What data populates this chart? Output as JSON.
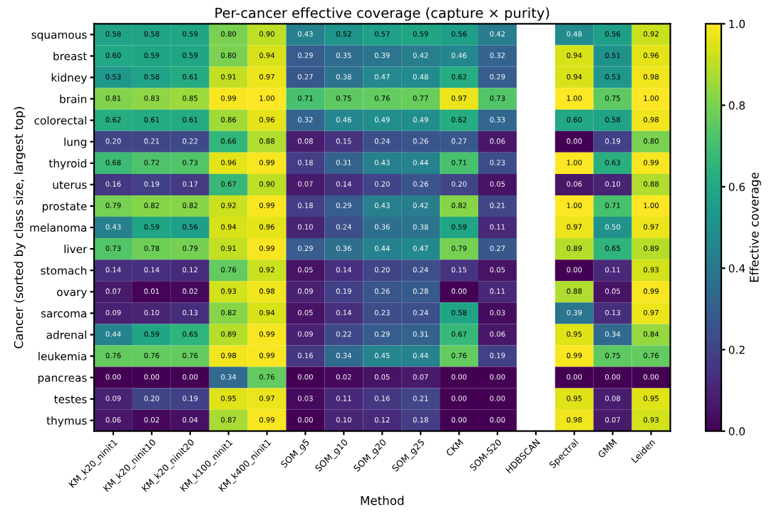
{
  "chart_data": {
    "type": "heatmap",
    "title": "Per-cancer effective coverage (capture × purity)",
    "xlabel": "Method",
    "ylabel": "Cancer (sorted by class size, largest top)",
    "clabel": "Effective coverage",
    "categories": [
      "KM_k20_ninit1",
      "KM_k20_ninit10",
      "KM_k20_ninit20",
      "KM_k100_ninit1",
      "KM_k400_ninit1",
      "SOM_g5",
      "SOM_g10",
      "SOM_g20",
      "SOM_g25",
      "CKM",
      "SOM-S20",
      "HDBSCAN",
      "Spectral",
      "GMM",
      "Leiden"
    ],
    "y_categories": [
      "squamous",
      "breast",
      "kidney",
      "brain",
      "colorectal",
      "lung",
      "thyroid",
      "uterus",
      "prostate",
      "melanoma",
      "liver",
      "stomach",
      "ovary",
      "sarcoma",
      "adrenal",
      "leukemia",
      "pancreas",
      "testes",
      "thymus"
    ],
    "cells": [
      [
        0.58,
        0.58,
        0.59,
        0.8,
        0.9,
        0.43,
        0.52,
        0.57,
        0.59,
        0.56,
        0.42,
        null,
        0.48,
        0.56,
        0.92
      ],
      [
        0.6,
        0.59,
        0.59,
        0.8,
        0.94,
        0.29,
        0.35,
        0.39,
        0.42,
        0.46,
        0.32,
        null,
        0.94,
        0.51,
        0.96
      ],
      [
        0.53,
        0.58,
        0.61,
        0.91,
        0.97,
        0.27,
        0.38,
        0.47,
        0.48,
        0.62,
        0.29,
        null,
        0.94,
        0.53,
        0.98
      ],
      [
        0.81,
        0.83,
        0.85,
        0.99,
        1.0,
        0.71,
        0.75,
        0.76,
        0.77,
        0.97,
        0.73,
        null,
        1.0,
        0.75,
        1.0
      ],
      [
        0.62,
        0.61,
        0.61,
        0.86,
        0.96,
        0.32,
        0.46,
        0.49,
        0.49,
        0.62,
        0.33,
        null,
        0.6,
        0.58,
        0.98
      ],
      [
        0.2,
        0.21,
        0.22,
        0.66,
        0.88,
        0.08,
        0.15,
        0.24,
        0.26,
        0.27,
        0.06,
        null,
        0.0,
        0.19,
        0.8
      ],
      [
        0.68,
        0.72,
        0.73,
        0.96,
        0.99,
        0.18,
        0.31,
        0.43,
        0.44,
        0.71,
        0.23,
        null,
        1.0,
        0.63,
        0.99
      ],
      [
        0.16,
        0.19,
        0.17,
        0.67,
        0.9,
        0.07,
        0.14,
        0.2,
        0.26,
        0.2,
        0.05,
        null,
        0.06,
        0.1,
        0.88
      ],
      [
        0.79,
        0.82,
        0.82,
        0.92,
        0.99,
        0.18,
        0.29,
        0.43,
        0.42,
        0.82,
        0.21,
        null,
        1.0,
        0.71,
        1.0
      ],
      [
        0.43,
        0.59,
        0.56,
        0.94,
        0.96,
        0.1,
        0.24,
        0.36,
        0.38,
        0.59,
        0.11,
        null,
        0.97,
        0.5,
        0.97
      ],
      [
        0.73,
        0.78,
        0.79,
        0.91,
        0.99,
        0.29,
        0.36,
        0.44,
        0.47,
        0.79,
        0.27,
        null,
        0.89,
        0.65,
        0.89
      ],
      [
        0.14,
        0.14,
        0.12,
        0.76,
        0.92,
        0.05,
        0.14,
        0.2,
        0.24,
        0.15,
        0.05,
        null,
        0.0,
        0.11,
        0.93
      ],
      [
        0.07,
        0.01,
        0.02,
        0.93,
        0.98,
        0.09,
        0.19,
        0.26,
        0.28,
        0.0,
        0.11,
        null,
        0.88,
        0.05,
        0.99
      ],
      [
        0.09,
        0.1,
        0.13,
        0.82,
        0.94,
        0.05,
        0.14,
        0.23,
        0.24,
        0.58,
        0.03,
        null,
        0.39,
        0.13,
        0.97
      ],
      [
        0.44,
        0.59,
        0.65,
        0.89,
        0.99,
        0.09,
        0.22,
        0.29,
        0.31,
        0.67,
        0.06,
        null,
        0.95,
        0.34,
        0.84
      ],
      [
        0.76,
        0.76,
        0.76,
        0.98,
        0.99,
        0.16,
        0.34,
        0.45,
        0.44,
        0.76,
        0.19,
        null,
        0.99,
        0.75,
        0.76
      ],
      [
        0.0,
        0.0,
        0.0,
        0.34,
        0.76,
        0.0,
        0.02,
        0.05,
        0.07,
        0.0,
        0.0,
        null,
        0.0,
        0.0,
        0.0
      ],
      [
        0.09,
        0.2,
        0.19,
        0.95,
        0.97,
        0.03,
        0.11,
        0.16,
        0.21,
        0.0,
        0.0,
        null,
        0.95,
        0.08,
        0.95
      ],
      [
        0.06,
        0.02,
        0.04,
        0.87,
        0.99,
        0.0,
        0.1,
        0.12,
        0.18,
        0.0,
        0.0,
        null,
        0.98,
        0.07,
        0.93
      ]
    ],
    "clim": [
      0,
      1
    ],
    "cticks": [
      {
        "value": 0,
        "label": "0.0"
      },
      {
        "value": 0.2,
        "label": "0.2"
      },
      {
        "value": 0.4,
        "label": "0.4"
      },
      {
        "value": 0.6,
        "label": "0.6"
      },
      {
        "value": 0.8,
        "label": "0.8"
      },
      {
        "value": 1,
        "label": "1.0"
      }
    ],
    "cell_labels": [
      [
        "0.58",
        "0.58",
        "0.59",
        "0.80",
        "0.90",
        "0.43",
        "0.52",
        "0.57",
        "0.59",
        "0.56",
        "0.42",
        null,
        "0.48",
        "0.56",
        "0.92"
      ],
      [
        "0.60",
        "0.59",
        "0.59",
        "0.80",
        "0.94",
        "0.29",
        "0.35",
        "0.39",
        "0.42",
        "0.46",
        "0.32",
        null,
        "0.94",
        "0.51",
        "0.96"
      ],
      [
        "0.53",
        "0.58",
        "0.61",
        "0.91",
        "0.97",
        "0.27",
        "0.38",
        "0.47",
        "0.48",
        "0.62",
        "0.29",
        null,
        "0.94",
        "0.53",
        "0.98"
      ],
      [
        "0.81",
        "0.83",
        "0.85",
        "0.99",
        "1.00",
        "0.71",
        "0.75",
        "0.76",
        "0.77",
        "0.97",
        "0.73",
        null,
        "1.00",
        "0.75",
        "1.00"
      ],
      [
        "0.62",
        "0.61",
        "0.61",
        "0.86",
        "0.96",
        "0.32",
        "0.46",
        "0.49",
        "0.49",
        "0.62",
        "0.33",
        null,
        "0.60",
        "0.58",
        "0.98"
      ],
      [
        "0.20",
        "0.21",
        "0.22",
        "0.66",
        "0.88",
        "0.08",
        "0.15",
        "0.24",
        "0.26",
        "0.27",
        "0.06",
        null,
        "0.00",
        "0.19",
        "0.80"
      ],
      [
        "0.68",
        "0.72",
        "0.73",
        "0.96",
        "0.99",
        "0.18",
        "0.31",
        "0.43",
        "0.44",
        "0.71",
        "0.23",
        null,
        "1.00",
        "0.63",
        "0.99"
      ],
      [
        "0.16",
        "0.19",
        "0.17",
        "0.67",
        "0.90",
        "0.07",
        "0.14",
        "0.20",
        "0.26",
        "0.20",
        "0.05",
        null,
        "0.06",
        "0.10",
        "0.88"
      ],
      [
        "0.79",
        "0.82",
        "0.82",
        "0.92",
        "0.99",
        "0.18",
        "0.29",
        "0.43",
        "0.42",
        "0.82",
        "0.21",
        null,
        "1.00",
        "0.71",
        "1.00"
      ],
      [
        "0.43",
        "0.59",
        "0.56",
        "0.94",
        "0.96",
        "0.10",
        "0.24",
        "0.36",
        "0.38",
        "0.59",
        "0.11",
        null,
        "0.97",
        "0.50",
        "0.97"
      ],
      [
        "0.73",
        "0.78",
        "0.79",
        "0.91",
        "0.99",
        "0.29",
        "0.36",
        "0.44",
        "0.47",
        "0.79",
        "0.27",
        null,
        "0.89",
        "0.65",
        "0.89"
      ],
      [
        "0.14",
        "0.14",
        "0.12",
        "0.76",
        "0.92",
        "0.05",
        "0.14",
        "0.20",
        "0.24",
        "0.15",
        "0.05",
        null,
        "0.00",
        "0.11",
        "0.93"
      ],
      [
        "0.07",
        "0.01",
        "0.02",
        "0.93",
        "0.98",
        "0.09",
        "0.19",
        "0.26",
        "0.28",
        "0.00",
        "0.11",
        null,
        "0.88",
        "0.05",
        "0.99"
      ],
      [
        "0.09",
        "0.10",
        "0.13",
        "0.82",
        "0.94",
        "0.05",
        "0.14",
        "0.23",
        "0.24",
        "0.58",
        "0.03",
        null,
        "0.39",
        "0.13",
        "0.97"
      ],
      [
        "0.44",
        "0.59",
        "0.65",
        "0.89",
        "0.99",
        "0.09",
        "0.22",
        "0.29",
        "0.31",
        "0.67",
        "0.06",
        null,
        "0.95",
        "0.34",
        "0.84"
      ],
      [
        "0.76",
        "0.76",
        "0.76",
        "0.98",
        "0.99",
        "0.16",
        "0.34",
        "0.45",
        "0.44",
        "0.76",
        "0.19",
        null,
        "0.99",
        "0.75",
        "0.76"
      ],
      [
        "0.00",
        "0.00",
        "0.00",
        "0.34",
        "0.76",
        "0.00",
        "0.02",
        "0.05",
        "0.07",
        "0.00",
        "0.00",
        null,
        "0.00",
        "0.00",
        "0.00"
      ],
      [
        "0.09",
        "0.20",
        "0.19",
        "0.95",
        "0.97",
        "0.03",
        "0.11",
        "0.16",
        "0.21",
        "0.00",
        "0.00",
        null,
        "0.95",
        "0.08",
        "0.95"
      ],
      [
        "0.06",
        "0.02",
        "0.04",
        "0.87",
        "0.99",
        "0.00",
        "0.10",
        "0.12",
        "0.18",
        "0.00",
        "0.00",
        null,
        "0.98",
        "0.07",
        "0.93"
      ]
    ]
  }
}
